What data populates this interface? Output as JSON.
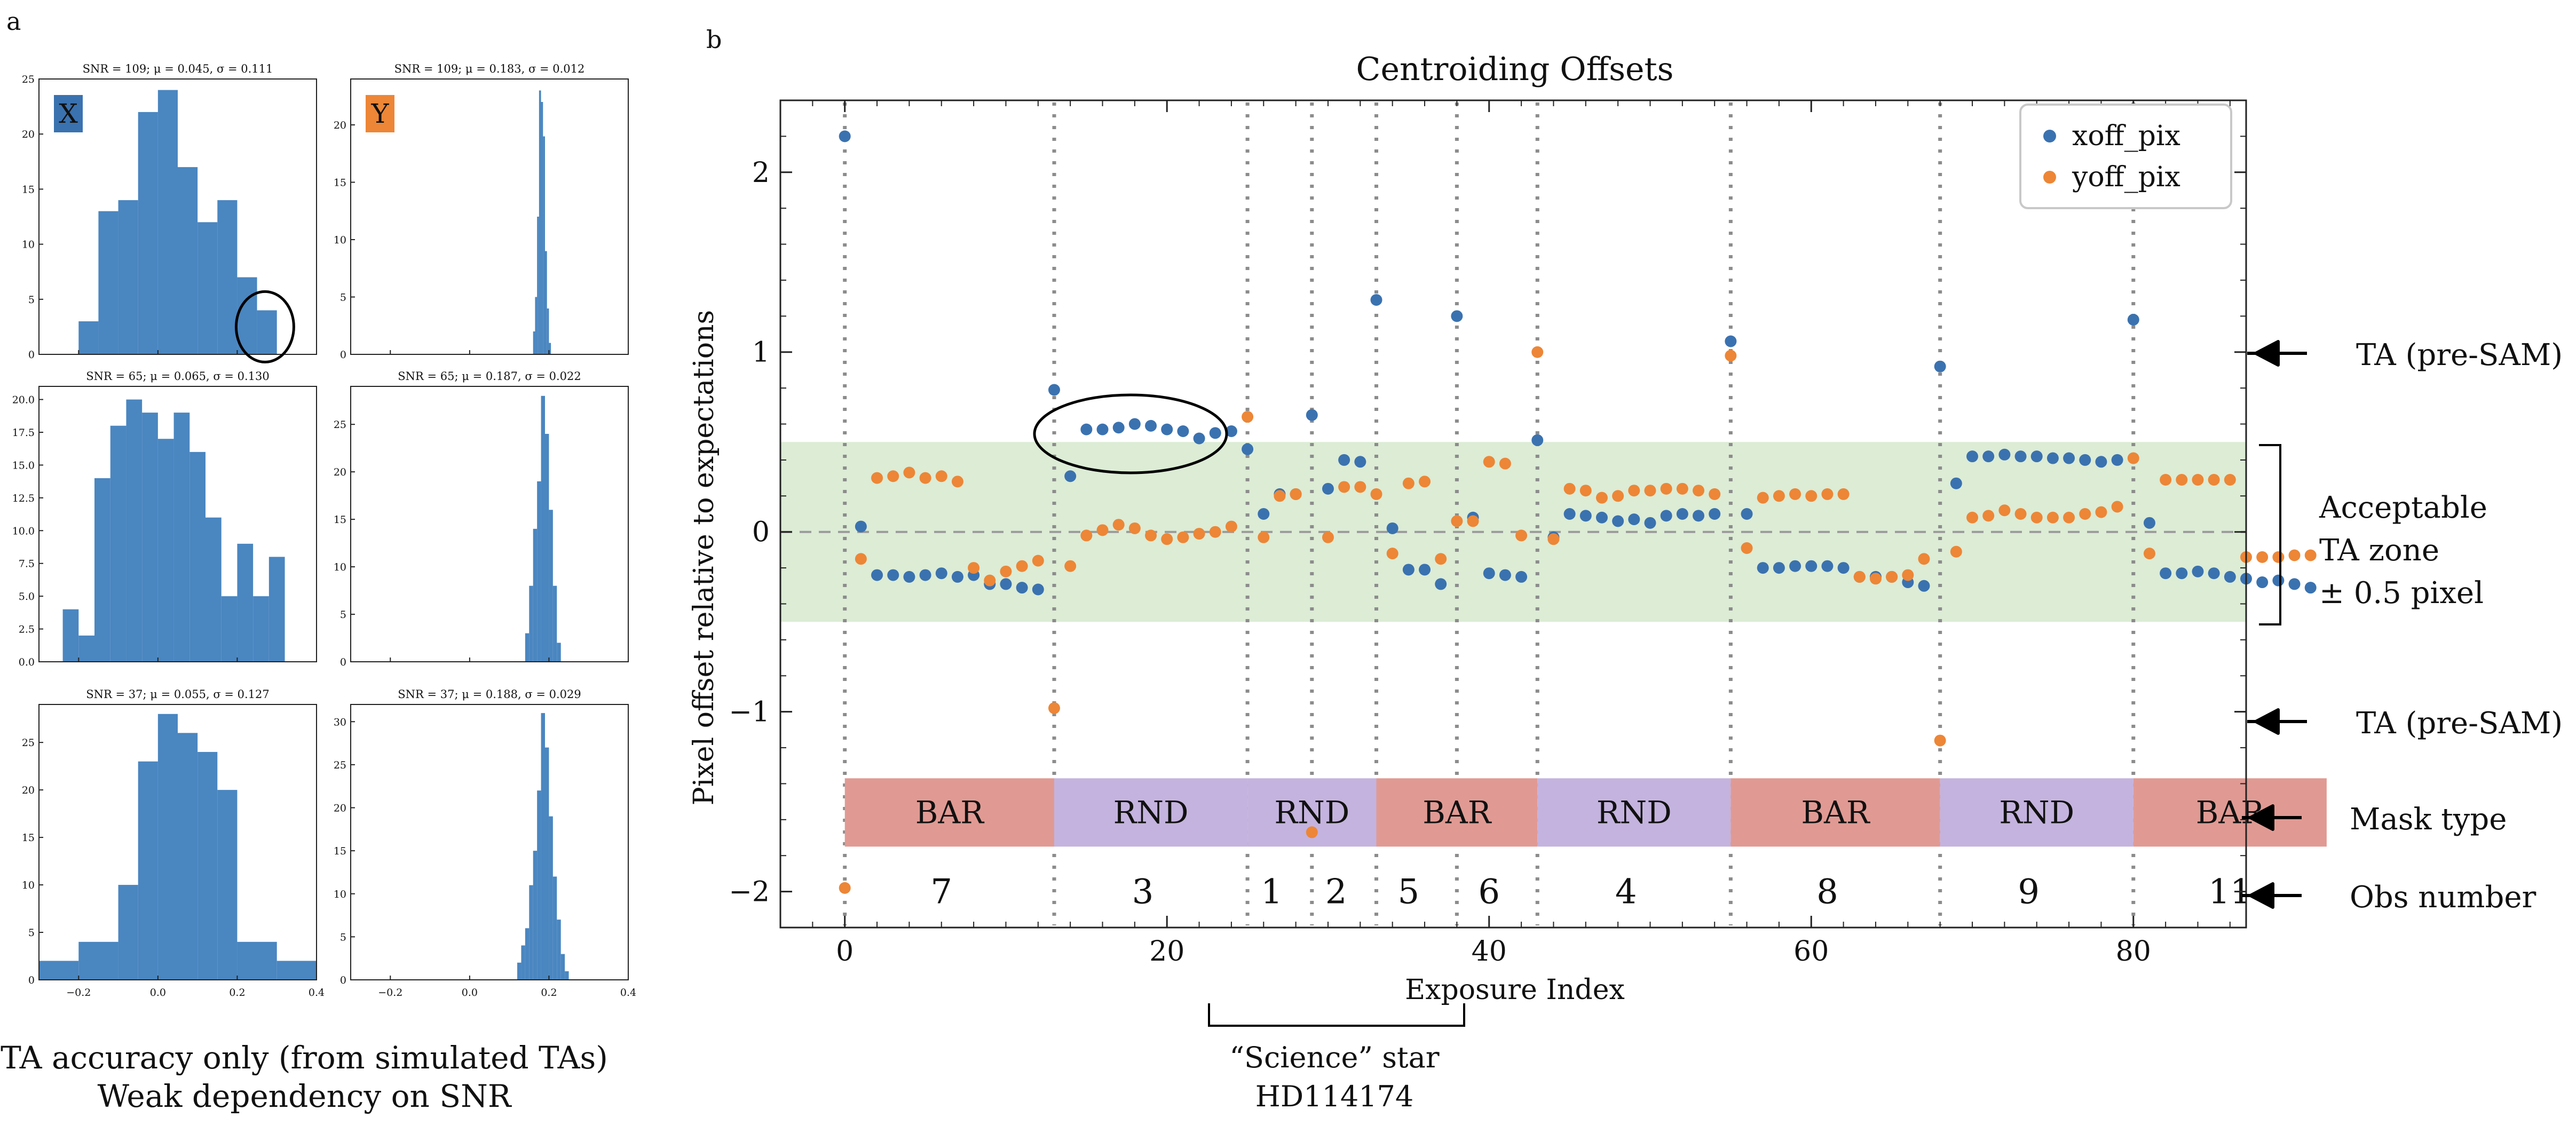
{
  "figure": {
    "panel_a_label": "a",
    "panel_b_label": "b",
    "caption_line1": "TA accuracy only (from simulated TAs)",
    "caption_line2": "Weak dependency on SNR",
    "science_star_line1": "“Science” star",
    "science_star_line2": "HD114174"
  },
  "annotations": {
    "ta_pre_sam_upper": "TA (pre-SAM)",
    "ta_pre_sam_lower": "TA (pre-SAM)",
    "acceptable_line1": "Acceptable",
    "acceptable_line2": "TA zone",
    "acceptable_line3": "± 0.5 pixel",
    "mask_type": "Mask type",
    "obs_number": "Obs number"
  },
  "colors": {
    "blue": "#3a72b0",
    "orange": "#ed8636",
    "hist_blue": "#4a86c0",
    "zone_green": "#dcecd5",
    "bar_red": "#e09a93",
    "rnd_purple": "#c4b3de"
  },
  "chart_data": [
    {
      "type": "scatter",
      "title": "Centroiding Offsets",
      "xlabel": "Exposure Index",
      "ylabel": "Pixel offset relative to expectations",
      "xlim": [
        -4,
        87
      ],
      "ylim": [
        -2.2,
        2.4
      ],
      "xticks": [
        0,
        20,
        40,
        60,
        80
      ],
      "xtick_labels": [
        "0",
        "20",
        "40",
        "60",
        "80"
      ],
      "yticks": [
        -2,
        -1,
        0,
        1,
        2
      ],
      "ytick_labels": [
        "−2",
        "−1",
        "0",
        "1",
        "2"
      ],
      "acceptable_zone": [
        -0.5,
        0.5
      ],
      "legend": [
        "xoff_pix",
        "yoff_pix"
      ],
      "separators": [
        13,
        25,
        29,
        33,
        38,
        43,
        55,
        68,
        80
      ],
      "mask_blocks": [
        {
          "label": "BAR",
          "kind": "BAR",
          "start": 0,
          "end": 13
        },
        {
          "label": "RND",
          "kind": "RND",
          "start": 13,
          "end": 25
        },
        {
          "label": "RND",
          "kind": "RND",
          "start": 25,
          "end": 33
        },
        {
          "label": "BAR",
          "kind": "BAR",
          "start": 33,
          "end": 43
        },
        {
          "label": "RND",
          "kind": "RND",
          "start": 43,
          "end": 55
        },
        {
          "label": "BAR",
          "kind": "BAR",
          "start": 55,
          "end": 68
        },
        {
          "label": "RND",
          "kind": "RND",
          "start": 68,
          "end": 80
        },
        {
          "label": "BAR",
          "kind": "BAR",
          "start": 80,
          "end": 92
        }
      ],
      "obs_numbers": [
        {
          "label": "7",
          "x": 6
        },
        {
          "label": "3",
          "x": 18.5
        },
        {
          "label": "1",
          "x": 26.5
        },
        {
          "label": "2",
          "x": 30.5
        },
        {
          "label": "5",
          "x": 35
        },
        {
          "label": "6",
          "x": 40
        },
        {
          "label": "4",
          "x": 48.5
        },
        {
          "label": "8",
          "x": 61
        },
        {
          "label": "9",
          "x": 73.5
        },
        {
          "label": "11",
          "x": 86
        }
      ],
      "series": [
        {
          "name": "xoff_pix",
          "x": [
            0,
            1,
            2,
            3,
            4,
            5,
            6,
            7,
            8,
            9,
            10,
            11,
            12,
            13,
            14,
            15,
            16,
            17,
            18,
            19,
            20,
            21,
            22,
            23,
            24,
            25,
            26,
            27,
            28,
            29,
            30,
            31,
            32,
            33,
            34,
            35,
            36,
            37,
            38,
            39,
            40,
            41,
            42,
            43,
            44,
            45,
            46,
            47,
            48,
            49,
            50,
            51,
            52,
            53,
            54,
            55,
            56,
            57,
            58,
            59,
            60,
            61,
            62,
            63,
            64,
            65,
            66,
            67,
            68,
            69,
            70,
            71,
            72,
            73,
            74,
            75,
            76,
            77,
            78,
            79,
            80,
            81,
            82,
            83,
            84,
            85,
            86,
            87,
            88,
            89,
            90,
            91
          ],
          "values": [
            2.2,
            0.03,
            -0.24,
            -0.24,
            -0.25,
            -0.24,
            -0.23,
            -0.25,
            -0.24,
            -0.29,
            -0.29,
            -0.31,
            -0.32,
            0.79,
            0.31,
            0.57,
            0.57,
            0.58,
            0.6,
            0.59,
            0.57,
            0.56,
            0.52,
            0.55,
            0.56,
            0.46,
            0.1,
            0.21,
            0.21,
            0.65,
            0.24,
            0.4,
            0.39,
            1.29,
            0.02,
            -0.21,
            -0.21,
            -0.29,
            1.2,
            0.08,
            -0.23,
            -0.24,
            -0.25,
            0.51,
            -0.03,
            0.1,
            0.09,
            0.08,
            0.06,
            0.07,
            0.05,
            0.09,
            0.1,
            0.09,
            0.1,
            1.06,
            0.1,
            -0.2,
            -0.2,
            -0.19,
            -0.19,
            -0.19,
            -0.2,
            -0.25,
            -0.25,
            -0.25,
            -0.28,
            -0.3,
            0.92,
            0.27,
            0.42,
            0.42,
            0.43,
            0.42,
            0.42,
            0.41,
            0.41,
            0.4,
            0.39,
            0.4,
            1.18,
            0.05,
            -0.23,
            -0.23,
            -0.22,
            -0.23,
            -0.25,
            -0.26,
            -0.28,
            -0.27,
            -0.29,
            -0.31
          ]
        },
        {
          "name": "yoff_pix",
          "x": [
            0,
            1,
            2,
            3,
            4,
            5,
            6,
            7,
            8,
            9,
            10,
            11,
            12,
            13,
            14,
            15,
            16,
            17,
            18,
            19,
            20,
            21,
            22,
            23,
            24,
            25,
            26,
            27,
            28,
            29,
            30,
            31,
            32,
            33,
            34,
            35,
            36,
            37,
            38,
            39,
            40,
            41,
            42,
            43,
            44,
            45,
            46,
            47,
            48,
            49,
            50,
            51,
            52,
            53,
            54,
            55,
            56,
            57,
            58,
            59,
            60,
            61,
            62,
            63,
            64,
            65,
            66,
            67,
            68,
            69,
            70,
            71,
            72,
            73,
            74,
            75,
            76,
            77,
            78,
            79,
            80,
            81,
            82,
            83,
            84,
            85,
            86,
            87,
            88,
            89,
            90,
            91
          ],
          "values": [
            -1.98,
            -0.15,
            0.3,
            0.31,
            0.33,
            0.3,
            0.31,
            0.28,
            -0.2,
            -0.27,
            -0.22,
            -0.19,
            -0.16,
            -0.98,
            -0.19,
            -0.02,
            0.01,
            0.04,
            0.02,
            -0.02,
            -0.04,
            -0.03,
            -0.01,
            0.0,
            0.03,
            0.64,
            -0.03,
            0.2,
            0.21,
            -1.67,
            -0.03,
            0.25,
            0.25,
            0.21,
            -0.12,
            0.27,
            0.28,
            -0.15,
            0.06,
            0.06,
            0.39,
            0.38,
            -0.02,
            1.0,
            -0.04,
            0.24,
            0.23,
            0.19,
            0.2,
            0.23,
            0.23,
            0.24,
            0.24,
            0.23,
            0.21,
            0.98,
            -0.09,
            0.19,
            0.2,
            0.21,
            0.2,
            0.21,
            0.21,
            -0.25,
            -0.26,
            -0.25,
            -0.24,
            -0.15,
            -1.16,
            -0.11,
            0.08,
            0.09,
            0.12,
            0.1,
            0.08,
            0.08,
            0.08,
            0.1,
            0.11,
            0.14,
            0.41,
            -0.12,
            0.29,
            0.29,
            0.29,
            0.29,
            0.29,
            -0.14,
            -0.14,
            -0.14,
            -0.13,
            -0.13
          ]
        }
      ]
    },
    {
      "type": "bar",
      "title": "SNR = 109; μ = 0.045, σ = 0.111",
      "badge": "X",
      "row": 0,
      "col": 0,
      "xlim": [
        -0.3,
        0.4
      ],
      "ylim": [
        0,
        25
      ],
      "yticks": [
        0,
        5,
        10,
        15,
        20,
        25
      ],
      "ytick_labels": [
        "0",
        "5",
        "10",
        "15",
        "20",
        "25"
      ],
      "bins": [
        [
          -0.2,
          -0.15
        ],
        [
          -0.15,
          -0.1
        ],
        [
          -0.1,
          -0.05
        ],
        [
          -0.05,
          0.0
        ],
        [
          0.0,
          0.05
        ],
        [
          0.05,
          0.1
        ],
        [
          0.1,
          0.15
        ],
        [
          0.15,
          0.2
        ],
        [
          0.2,
          0.25
        ],
        [
          0.25,
          0.3
        ]
      ],
      "values": [
        3,
        13,
        14,
        22,
        24,
        17,
        12,
        14,
        7,
        4
      ]
    },
    {
      "type": "bar",
      "title": "SNR = 109; μ = 0.183, σ = 0.012",
      "badge": "Y",
      "row": 0,
      "col": 1,
      "xlim": [
        -0.3,
        0.4
      ],
      "ylim": [
        0,
        24
      ],
      "yticks": [
        0,
        5,
        10,
        15,
        20
      ],
      "ytick_labels": [
        "0",
        "5",
        "10",
        "15",
        "20"
      ],
      "bins": [
        [
          0.16,
          0.165
        ],
        [
          0.165,
          0.17
        ],
        [
          0.17,
          0.175
        ],
        [
          0.175,
          0.18
        ],
        [
          0.18,
          0.185
        ],
        [
          0.185,
          0.19
        ],
        [
          0.19,
          0.195
        ],
        [
          0.195,
          0.2
        ],
        [
          0.2,
          0.205
        ]
      ],
      "values": [
        2,
        5,
        12,
        23,
        22,
        19,
        9,
        4,
        1
      ]
    },
    {
      "type": "bar",
      "title": "SNR = 65; μ = 0.065, σ = 0.130",
      "row": 1,
      "col": 0,
      "xlim": [
        -0.3,
        0.4
      ],
      "ylim": [
        0,
        21
      ],
      "yticks": [
        0,
        2.5,
        5,
        7.5,
        10,
        12.5,
        15,
        17.5,
        20
      ],
      "ytick_labels": [
        "0.0",
        "2.5",
        "5.0",
        "7.5",
        "10.0",
        "12.5",
        "15.0",
        "17.5",
        "20.0"
      ],
      "bins": [
        [
          -0.24,
          -0.2
        ],
        [
          -0.2,
          -0.16
        ],
        [
          -0.16,
          -0.12
        ],
        [
          -0.12,
          -0.08
        ],
        [
          -0.08,
          -0.04
        ],
        [
          -0.04,
          0.0
        ],
        [
          0.0,
          0.04
        ],
        [
          0.04,
          0.08
        ],
        [
          0.08,
          0.12
        ],
        [
          0.12,
          0.16
        ],
        [
          0.16,
          0.2
        ],
        [
          0.2,
          0.24
        ],
        [
          0.24,
          0.28
        ],
        [
          0.28,
          0.32
        ]
      ],
      "values": [
        4,
        2,
        14,
        18,
        20,
        19,
        17,
        19,
        16,
        11,
        5,
        9,
        5,
        8
      ]
    },
    {
      "type": "bar",
      "title": "SNR = 65; μ = 0.187, σ = 0.022",
      "row": 1,
      "col": 1,
      "xlim": [
        -0.3,
        0.4
      ],
      "ylim": [
        0,
        29
      ],
      "yticks": [
        0,
        5,
        10,
        15,
        20,
        25
      ],
      "ytick_labels": [
        "0",
        "5",
        "10",
        "15",
        "20",
        "25"
      ],
      "bins": [
        [
          0.14,
          0.15
        ],
        [
          0.15,
          0.16
        ],
        [
          0.16,
          0.17
        ],
        [
          0.17,
          0.18
        ],
        [
          0.18,
          0.19
        ],
        [
          0.19,
          0.2
        ],
        [
          0.2,
          0.21
        ],
        [
          0.21,
          0.22
        ],
        [
          0.22,
          0.23
        ]
      ],
      "values": [
        3,
        8,
        14,
        19,
        28,
        24,
        16,
        8,
        2
      ]
    },
    {
      "type": "bar",
      "title": "SNR = 37; μ = 0.055, σ = 0.127",
      "row": 2,
      "col": 0,
      "xlim": [
        -0.3,
        0.4
      ],
      "ylim": [
        0,
        29
      ],
      "yticks": [
        0,
        5,
        10,
        15,
        20,
        25
      ],
      "ytick_labels": [
        "0",
        "5",
        "10",
        "15",
        "20",
        "25"
      ],
      "xticks": [
        -0.2,
        0.0,
        0.2,
        0.4
      ],
      "xtick_labels": [
        "−0.2",
        "0.0",
        "0.2",
        "0.4"
      ],
      "bins": [
        [
          -0.3,
          -0.2
        ],
        [
          -0.2,
          -0.1
        ],
        [
          -0.1,
          -0.05
        ],
        [
          -0.05,
          0.0
        ],
        [
          0.0,
          0.05
        ],
        [
          0.05,
          0.1
        ],
        [
          0.1,
          0.15
        ],
        [
          0.15,
          0.2
        ],
        [
          0.2,
          0.3
        ],
        [
          0.3,
          0.4
        ]
      ],
      "values": [
        2,
        4,
        10,
        23,
        28,
        26,
        24,
        20,
        4,
        2
      ]
    },
    {
      "type": "bar",
      "title": "SNR = 37; μ = 0.188, σ = 0.029",
      "row": 2,
      "col": 1,
      "xlim": [
        -0.3,
        0.4
      ],
      "ylim": [
        0,
        32
      ],
      "yticks": [
        0,
        5,
        10,
        15,
        20,
        25,
        30
      ],
      "ytick_labels": [
        "0",
        "5",
        "10",
        "15",
        "20",
        "25",
        "30"
      ],
      "xticks": [
        -0.2,
        0.0,
        0.2,
        0.4
      ],
      "xtick_labels": [
        "−0.2",
        "0.0",
        "0.2",
        "0.4"
      ],
      "bins": [
        [
          0.12,
          0.13
        ],
        [
          0.13,
          0.14
        ],
        [
          0.14,
          0.15
        ],
        [
          0.15,
          0.16
        ],
        [
          0.16,
          0.17
        ],
        [
          0.17,
          0.18
        ],
        [
          0.18,
          0.19
        ],
        [
          0.19,
          0.2
        ],
        [
          0.2,
          0.21
        ],
        [
          0.21,
          0.22
        ],
        [
          0.22,
          0.23
        ],
        [
          0.23,
          0.24
        ],
        [
          0.24,
          0.25
        ]
      ],
      "values": [
        2,
        4,
        6,
        11,
        15,
        22,
        31,
        27,
        19,
        12,
        7,
        3,
        1
      ]
    }
  ]
}
